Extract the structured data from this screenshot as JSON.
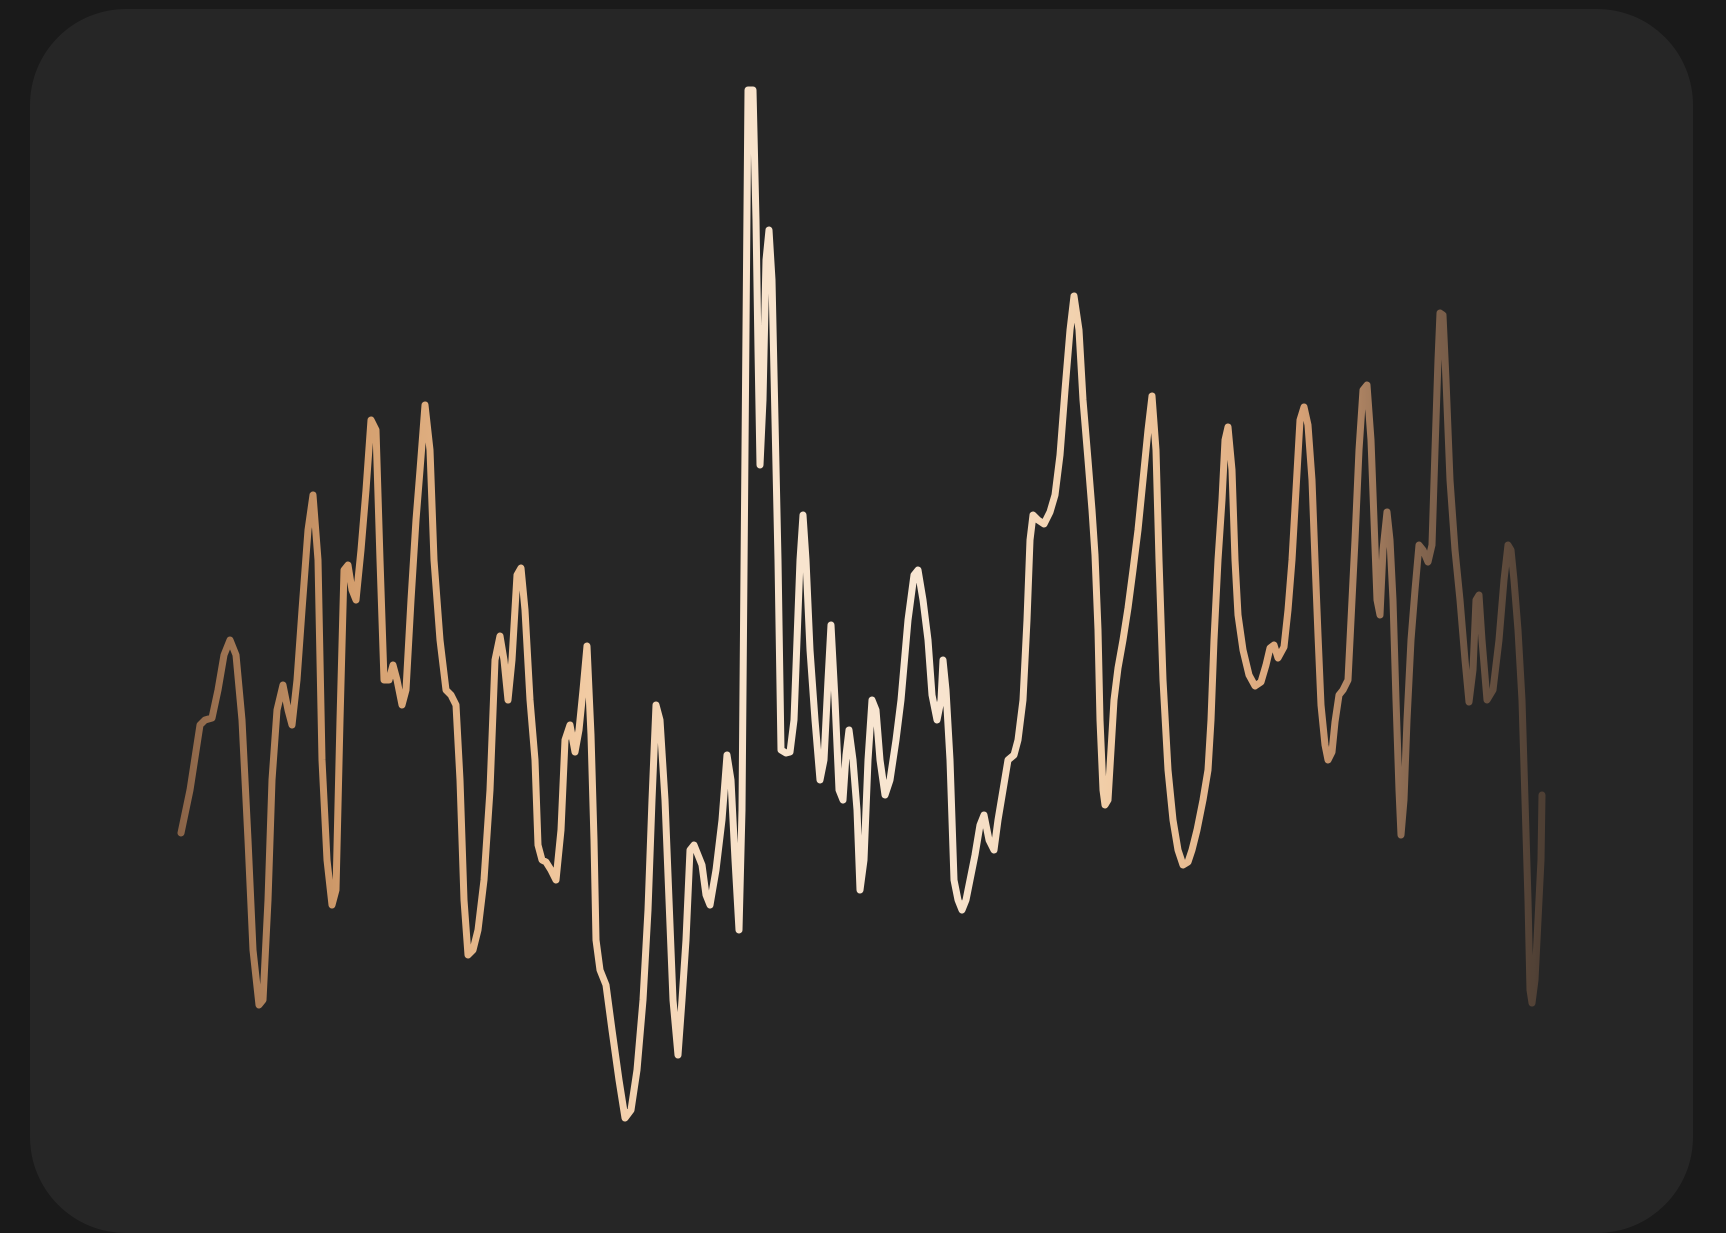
{
  "waveform": {
    "colors": {
      "background": "#1a1a1a",
      "card": "#262626",
      "gradient": [
        "#8a6448",
        "#d29c6b",
        "#f2cfa8",
        "#f8e6d2",
        "#f2cfa8",
        "#d9a377",
        "#8a6a52",
        "#4e3f34"
      ]
    }
  }
}
